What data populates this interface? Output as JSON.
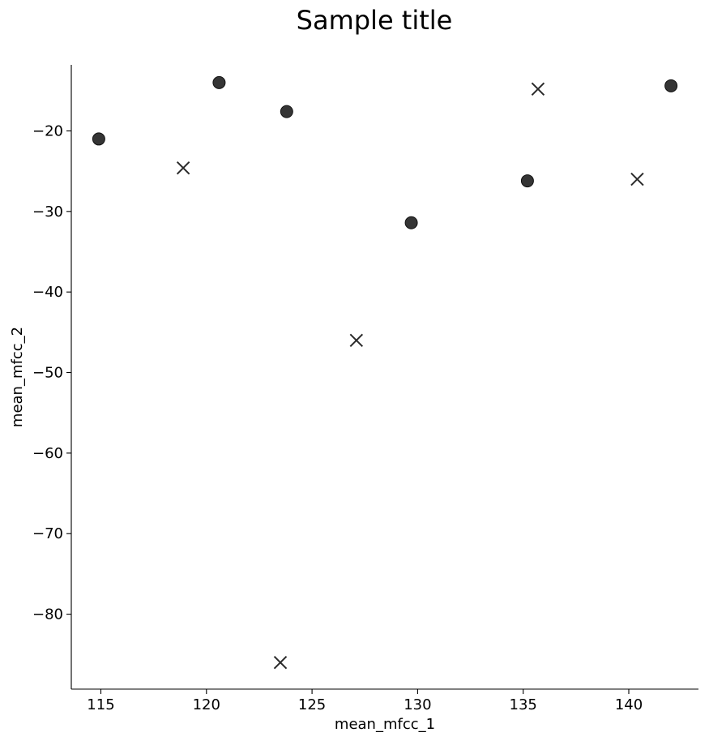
{
  "chart_data": {
    "type": "scatter",
    "title": "Sample title",
    "xlabel": "mean_mfcc_1",
    "ylabel": "mean_mfcc_2",
    "xlim": [
      113.6,
      143.3
    ],
    "ylim": [
      -89.3,
      -11.8
    ],
    "xticks": [
      115,
      120,
      125,
      130,
      135,
      140
    ],
    "yticks": [
      -20,
      -30,
      -40,
      -50,
      -60,
      -70,
      -80
    ],
    "grid": false,
    "legend": "none",
    "colors": {
      "marker": "#2a2a2a",
      "axis": "#000000"
    },
    "series": [
      {
        "name": "circle",
        "marker": "o",
        "points": [
          {
            "x": 114.9,
            "y": -21.0
          },
          {
            "x": 120.6,
            "y": -14.0
          },
          {
            "x": 123.8,
            "y": -17.6
          },
          {
            "x": 129.7,
            "y": -31.4
          },
          {
            "x": 135.2,
            "y": -26.2
          },
          {
            "x": 142.0,
            "y": -14.4
          }
        ]
      },
      {
        "name": "cross",
        "marker": "x",
        "points": [
          {
            "x": 118.9,
            "y": -24.6
          },
          {
            "x": 123.5,
            "y": -86.0
          },
          {
            "x": 127.1,
            "y": -46.0
          },
          {
            "x": 135.7,
            "y": -14.8
          },
          {
            "x": 140.4,
            "y": -26.0
          }
        ]
      }
    ]
  }
}
